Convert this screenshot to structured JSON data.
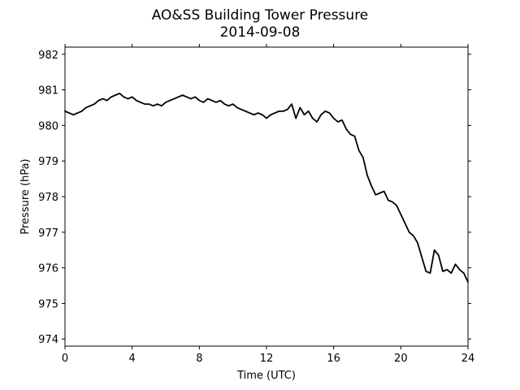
{
  "chart_data": {
    "type": "line",
    "title": "AO&SS Building Tower Pressure",
    "subtitle": "2014-09-08",
    "xlabel": "Time (UTC)",
    "ylabel": "Pressure (hPa)",
    "xlim": [
      0,
      24
    ],
    "ylim": [
      973.8,
      982.2
    ],
    "xticks": [
      0,
      4,
      8,
      12,
      16,
      20,
      24
    ],
    "yticks": [
      974,
      975,
      976,
      977,
      978,
      979,
      980,
      981,
      982
    ],
    "grid": false,
    "legend": "none",
    "line_color": "#000000",
    "series": [
      {
        "x": [
          0,
          0.25,
          0.5,
          0.75,
          1.0,
          1.25,
          1.5,
          1.75,
          2.0,
          2.25,
          2.5,
          2.75,
          3.0,
          3.25,
          3.5,
          3.75,
          4.0,
          4.25,
          4.5,
          4.75,
          5.0,
          5.25,
          5.5,
          5.75,
          6.0,
          6.25,
          6.5,
          6.75,
          7.0,
          7.25,
          7.5,
          7.75,
          8.0,
          8.25,
          8.5,
          8.75,
          9.0,
          9.25,
          9.5,
          9.75,
          10.0,
          10.25,
          10.5,
          10.75,
          11.0,
          11.25,
          11.5,
          11.75,
          12.0,
          12.25,
          12.5,
          12.75,
          13.0,
          13.25,
          13.5,
          13.75,
          14.0,
          14.25,
          14.5,
          14.75,
          15.0,
          15.25,
          15.5,
          15.75,
          16.0,
          16.25,
          16.5,
          16.75,
          17.0,
          17.25,
          17.5,
          17.75,
          18.0,
          18.25,
          18.5,
          18.75,
          19.0,
          19.25,
          19.5,
          19.75,
          20.0,
          20.25,
          20.5,
          20.75,
          21.0,
          21.25,
          21.5,
          21.75,
          22.0,
          22.25,
          22.5,
          22.75,
          23.0,
          23.25,
          23.5,
          23.75,
          24.0
        ],
        "y": [
          980.4,
          980.35,
          980.3,
          980.35,
          980.4,
          980.5,
          980.55,
          980.6,
          980.7,
          980.75,
          980.7,
          980.8,
          980.85,
          980.9,
          980.8,
          980.75,
          980.8,
          980.7,
          980.65,
          980.6,
          980.6,
          980.55,
          980.6,
          980.55,
          980.65,
          980.7,
          980.75,
          980.8,
          980.85,
          980.8,
          980.75,
          980.8,
          980.7,
          980.65,
          980.75,
          980.7,
          980.65,
          980.7,
          980.6,
          980.55,
          980.6,
          980.5,
          980.45,
          980.4,
          980.35,
          980.3,
          980.35,
          980.3,
          980.2,
          980.3,
          980.35,
          980.4,
          980.4,
          980.45,
          980.6,
          980.2,
          980.5,
          980.3,
          980.4,
          980.2,
          980.1,
          980.3,
          980.4,
          980.35,
          980.2,
          980.1,
          980.15,
          979.9,
          979.75,
          979.7,
          979.3,
          979.1,
          978.6,
          978.3,
          978.05,
          978.1,
          978.15,
          977.9,
          977.85,
          977.75,
          977.5,
          977.25,
          977.0,
          976.9,
          976.7,
          976.3,
          975.9,
          975.85,
          976.5,
          976.35,
          975.9,
          975.95,
          975.85,
          976.1,
          975.95,
          975.85,
          975.6
        ]
      }
    ]
  }
}
